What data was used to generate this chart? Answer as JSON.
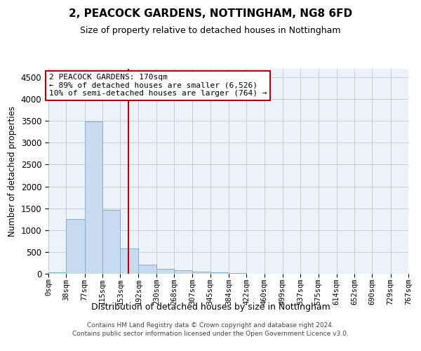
{
  "title": "2, PEACOCK GARDENS, NOTTINGHAM, NG8 6FD",
  "subtitle": "Size of property relative to detached houses in Nottingham",
  "xlabel": "Distribution of detached houses by size in Nottingham",
  "ylabel": "Number of detached properties",
  "footer_line1": "Contains HM Land Registry data © Crown copyright and database right 2024.",
  "footer_line2": "Contains public sector information licensed under the Open Government Licence v3.0.",
  "bar_color": "#c8daf0",
  "bar_edge_color": "#7ab0d8",
  "grid_color": "#c8cce0",
  "bg_color": "#edf1fa",
  "annotation_line1": "2 PEACOCK GARDENS: 170sqm",
  "annotation_line2": "← 89% of detached houses are smaller (6,526)",
  "annotation_line3": "10% of semi-detached houses are larger (764) →",
  "vline_x": 170,
  "vline_color": "#bb0000",
  "annotation_box_edge": "#bb0000",
  "bins": [
    0,
    38,
    77,
    115,
    153,
    192,
    230,
    268,
    307,
    345,
    384,
    422,
    460,
    499,
    537,
    575,
    614,
    652,
    690,
    729,
    767
  ],
  "counts": [
    28,
    1255,
    3490,
    1465,
    585,
    215,
    108,
    78,
    52,
    28,
    10,
    5,
    3,
    2,
    1,
    0,
    0,
    0,
    0,
    0
  ],
  "ylim": [
    0,
    4700
  ],
  "yticks": [
    0,
    500,
    1000,
    1500,
    2000,
    2500,
    3000,
    3500,
    4000,
    4500
  ],
  "title_fontsize": 11,
  "subtitle_fontsize": 9,
  "ylabel_fontsize": 8.5,
  "xlabel_fontsize": 9,
  "tick_fontsize": 7.5,
  "footer_fontsize": 6.5
}
